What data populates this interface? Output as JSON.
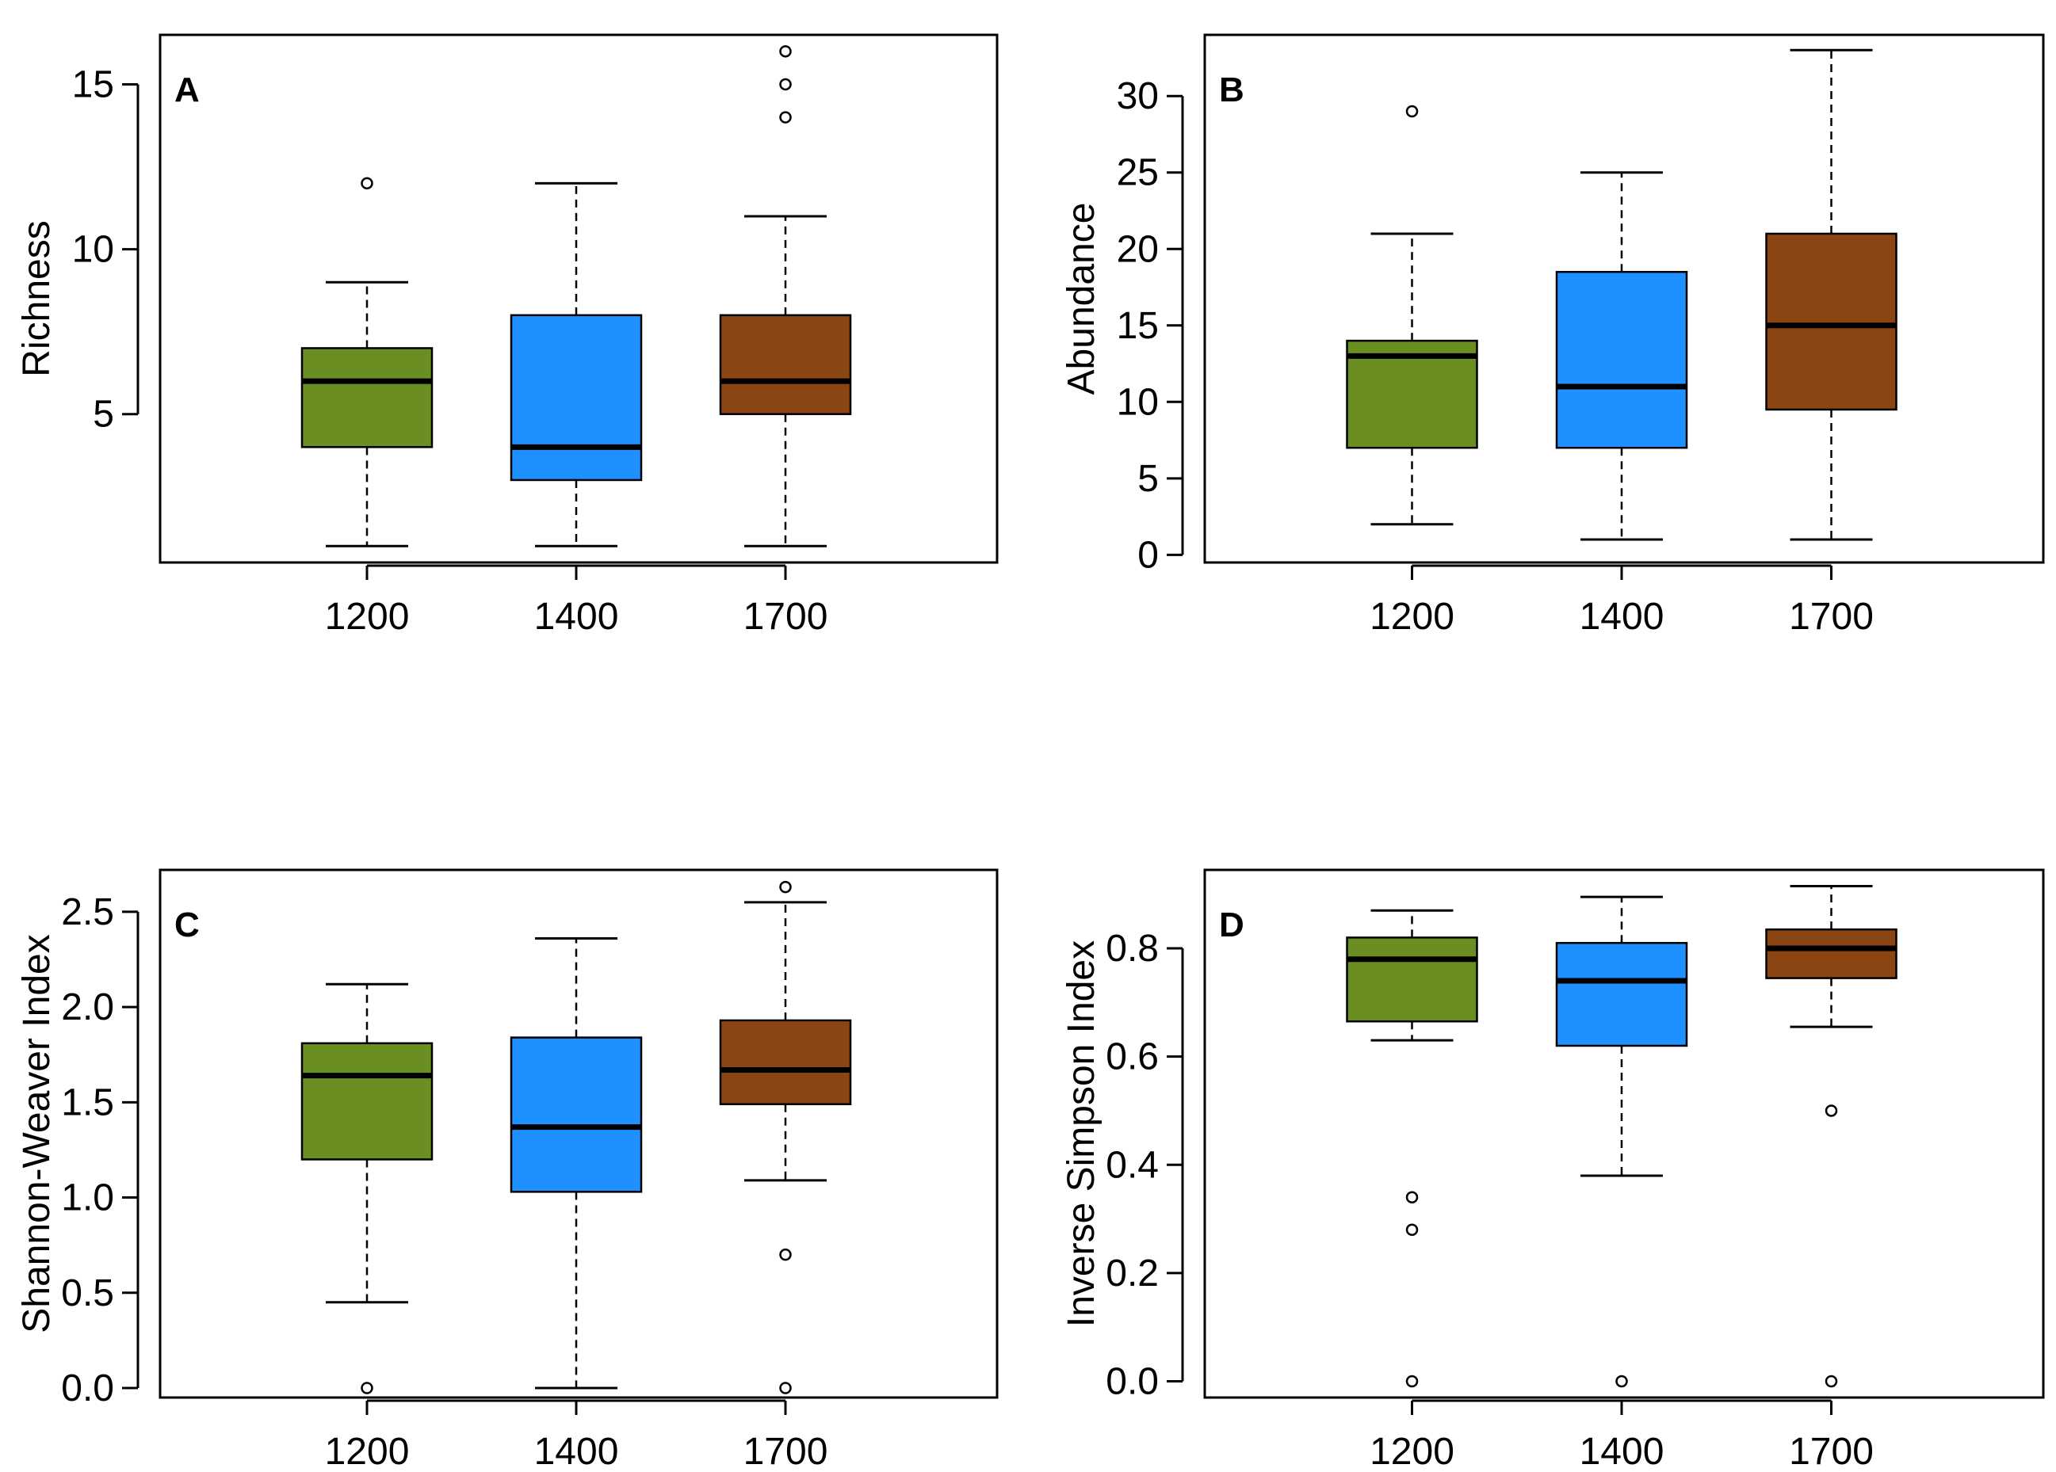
{
  "chart_data": [
    {
      "type": "box",
      "panel": "A",
      "ylabel": "Richness",
      "categories": [
        "1200",
        "1400",
        "1700"
      ],
      "colors": [
        "#6b8e23",
        "#1e90ff",
        "#8b4513"
      ],
      "ylim": [
        0.5,
        16.5
      ],
      "yticks": [
        5,
        10,
        15
      ],
      "tick_labels": [
        "5",
        "10",
        "15"
      ],
      "boxes": [
        {
          "whisker_low": 1,
          "q1": 4,
          "median": 6,
          "q3": 7,
          "whisker_high": 9,
          "outliers": [
            12
          ]
        },
        {
          "whisker_low": 1,
          "q1": 3,
          "median": 4,
          "q3": 8,
          "whisker_high": 12,
          "outliers": []
        },
        {
          "whisker_low": 1,
          "q1": 5,
          "median": 6,
          "q3": 8,
          "whisker_high": 11,
          "outliers": [
            14,
            15,
            16
          ]
        }
      ]
    },
    {
      "type": "box",
      "panel": "B",
      "ylabel": "Abundance",
      "categories": [
        "1200",
        "1400",
        "1700"
      ],
      "colors": [
        "#6b8e23",
        "#1e90ff",
        "#8b4513"
      ],
      "ylim": [
        -0.5,
        34
      ],
      "yticks": [
        0,
        5,
        10,
        15,
        20,
        25,
        30
      ],
      "tick_labels": [
        "0",
        "5",
        "10",
        "15",
        "20",
        "25",
        "30"
      ],
      "boxes": [
        {
          "whisker_low": 2,
          "q1": 7,
          "median": 13,
          "q3": 14,
          "whisker_high": 21,
          "outliers": [
            29
          ]
        },
        {
          "whisker_low": 1,
          "q1": 7,
          "median": 11,
          "q3": 18.5,
          "whisker_high": 25,
          "outliers": []
        },
        {
          "whisker_low": 1,
          "q1": 9.5,
          "median": 15,
          "q3": 21,
          "whisker_high": 33,
          "outliers": []
        }
      ]
    },
    {
      "type": "box",
      "panel": "C",
      "ylabel": "Shannon-Weaver Index",
      "categories": [
        "1200",
        "1400",
        "1700"
      ],
      "colors": [
        "#6b8e23",
        "#1e90ff",
        "#8b4513"
      ],
      "ylim": [
        -0.05,
        2.72
      ],
      "yticks": [
        0,
        0.5,
        1,
        1.5,
        2,
        2.5
      ],
      "tick_labels": [
        "0.0",
        "0.5",
        "1.0",
        "1.5",
        "2.0",
        "2.5"
      ],
      "boxes": [
        {
          "whisker_low": 0.45,
          "q1": 1.2,
          "median": 1.64,
          "q3": 1.81,
          "whisker_high": 2.12,
          "outliers": [
            0.0
          ]
        },
        {
          "whisker_low": 0.0,
          "q1": 1.03,
          "median": 1.37,
          "q3": 1.84,
          "whisker_high": 2.36,
          "outliers": []
        },
        {
          "whisker_low": 1.09,
          "q1": 1.49,
          "median": 1.67,
          "q3": 1.93,
          "whisker_high": 2.55,
          "outliers": [
            2.63,
            0.7,
            0.0
          ]
        }
      ]
    },
    {
      "type": "box",
      "panel": "D",
      "ylabel": "Inverse Simpson Index",
      "categories": [
        "1200",
        "1400",
        "1700"
      ],
      "colors": [
        "#6b8e23",
        "#1e90ff",
        "#8b4513"
      ],
      "ylim": [
        -0.03,
        0.945
      ],
      "yticks": [
        0,
        0.2,
        0.4,
        0.6,
        0.8
      ],
      "tick_labels": [
        "0.0",
        "0.2",
        "0.4",
        "0.6",
        "0.8"
      ],
      "boxes": [
        {
          "whisker_low": 0.63,
          "q1": 0.665,
          "median": 0.78,
          "q3": 0.82,
          "whisker_high": 0.87,
          "outliers": [
            0.34,
            0.28,
            0.0
          ]
        },
        {
          "whisker_low": 0.38,
          "q1": 0.62,
          "median": 0.74,
          "q3": 0.81,
          "whisker_high": 0.895,
          "outliers": [
            0.0
          ]
        },
        {
          "whisker_low": 0.655,
          "q1": 0.745,
          "median": 0.8,
          "q3": 0.835,
          "whisker_high": 0.915,
          "outliers": [
            0.5,
            0.0
          ]
        }
      ]
    }
  ]
}
